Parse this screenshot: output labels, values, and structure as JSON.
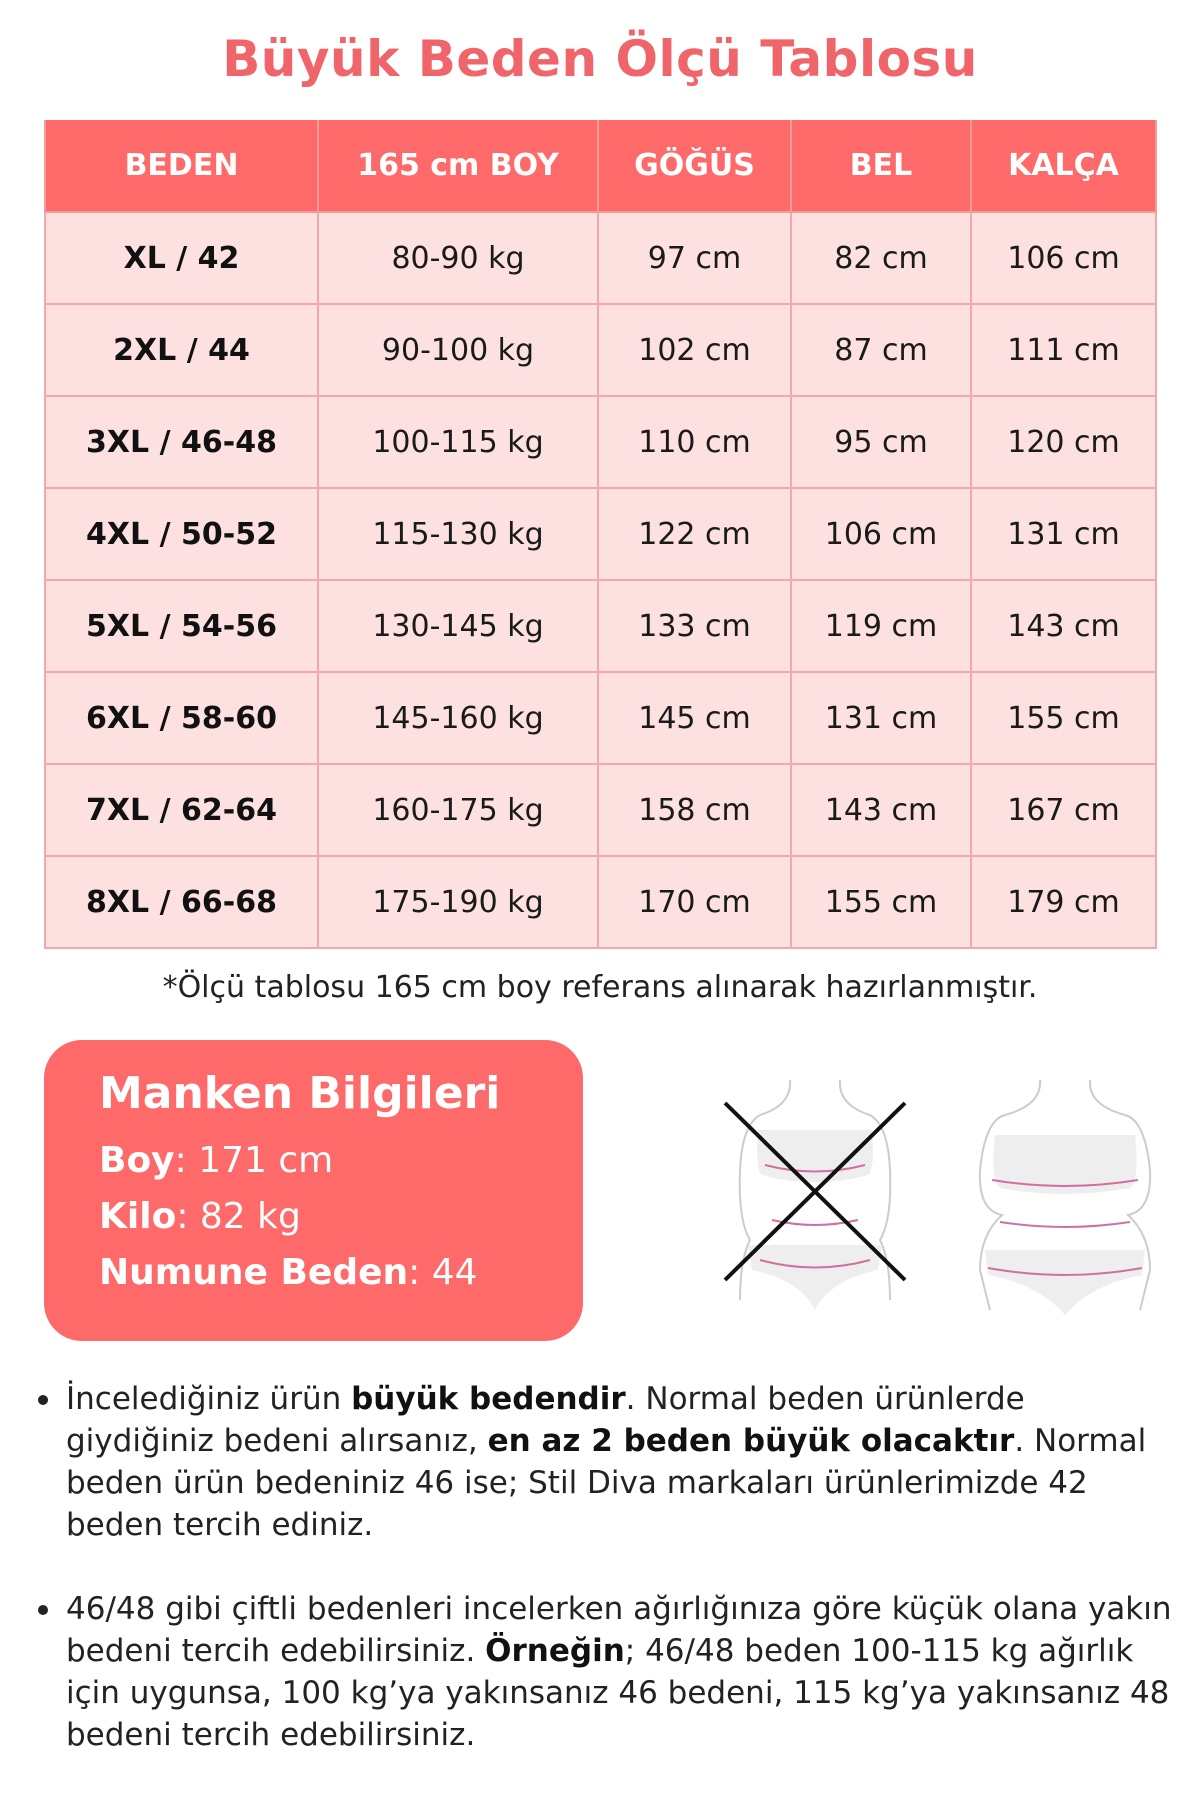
{
  "title": "Büyük Beden Ölçü Tablosu",
  "table": {
    "headers": [
      "BEDEN",
      "165 cm BOY",
      "GÖĞÜS",
      "BEL",
      "KALÇA"
    ],
    "rows": [
      [
        "XL / 42",
        "80-90 kg",
        "97 cm",
        "82 cm",
        "106 cm"
      ],
      [
        "2XL / 44",
        "90-100 kg",
        "102 cm",
        "87 cm",
        "111 cm"
      ],
      [
        "3XL / 46-48",
        "100-115 kg",
        "110 cm",
        "95 cm",
        "120 cm"
      ],
      [
        "4XL / 50-52",
        "115-130 kg",
        "122 cm",
        "106 cm",
        "131 cm"
      ],
      [
        "5XL / 54-56",
        "130-145 kg",
        "133 cm",
        "119 cm",
        "143 cm"
      ],
      [
        "6XL / 58-60",
        "145-160 kg",
        "145 cm",
        "131 cm",
        "155 cm"
      ],
      [
        "7XL / 62-64",
        "160-175 kg",
        "158 cm",
        "143 cm",
        "167 cm"
      ],
      [
        "8XL / 66-68",
        "175-190 kg",
        "170 cm",
        "155 cm",
        "179 cm"
      ]
    ]
  },
  "note": "*Ölçü tablosu 165 cm boy referans alınarak hazırlanmıştır.",
  "model": {
    "heading": "Manken Bilgileri",
    "height_label": "Boy",
    "height_value": ": 171 cm",
    "weight_label": "Kilo",
    "weight_value": ": 82 kg",
    "size_label": "Numune Beden",
    "size_value": ": 44"
  },
  "bullets": [
    [
      {
        "t": "İncelediğiniz ürün "
      },
      {
        "t": "büyük bedendir",
        "b": true
      },
      {
        "t": ". Normal beden ürünlerde giydiğiniz bedeni alırsanız, "
      },
      {
        "t": "en az 2 beden büyük olacaktır",
        "b": true
      },
      {
        "t": ". Normal beden ürün bedeniniz 46 ise; Stil Diva markaları ürünlerimizde 42 beden tercih ediniz."
      }
    ],
    [
      {
        "t": "46/48 gibi çiftli bedenleri incelerken ağırlığınıza göre küçük olana yakın bedeni tercih edebilirsiniz. "
      },
      {
        "t": "Örneğin",
        "b": true
      },
      {
        "t": "; 46/48 beden 100-115 kg ağırlık için uygunsa, 100 kg’ya yakınsanız 46 bedeni, 115 kg’ya yakınsanız 48 bedeni tercih edebilirsiniz."
      }
    ]
  ],
  "colors": {
    "accent": "#fe6a6a",
    "title": "#f0656a",
    "cell": "#fde0e0"
  }
}
